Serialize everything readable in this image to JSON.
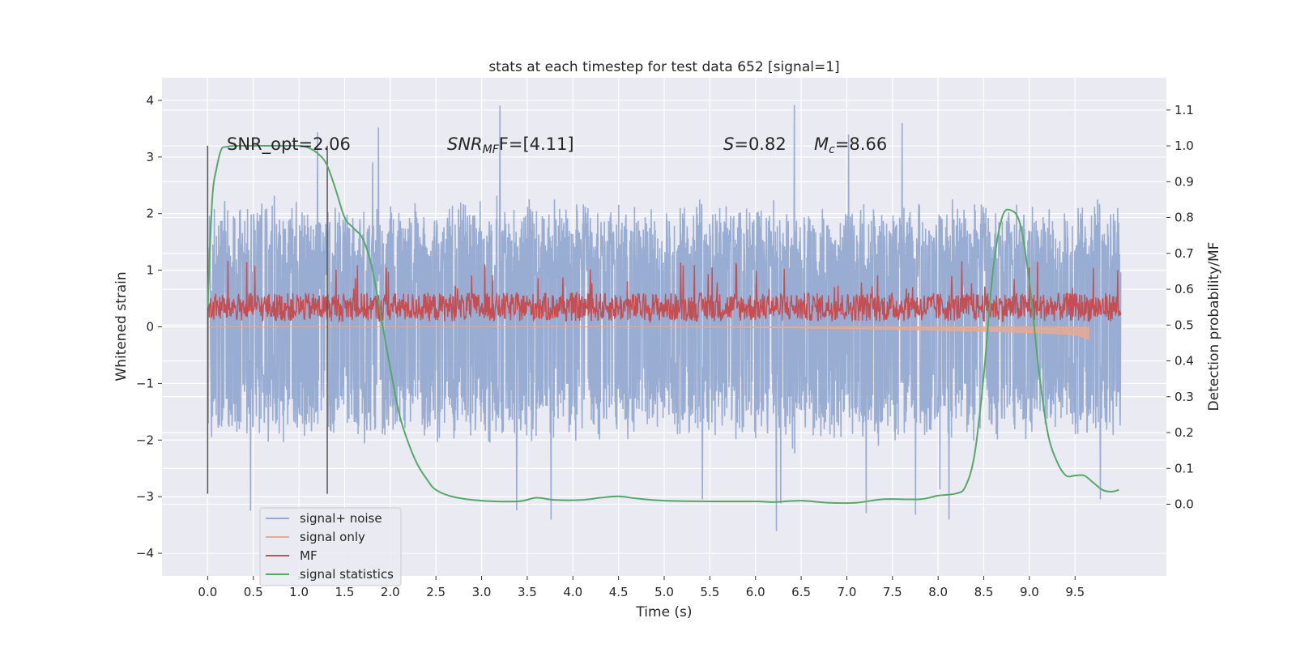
{
  "chart_data": {
    "type": "line",
    "title": "stats at each timestep for test data 652 [signal=1]",
    "xlabel": "Time (s)",
    "ylabel_left": "Whitened strain",
    "ylabel_right": "Detection probability/MF",
    "xlim": [
      -0.5,
      10.5
    ],
    "ylim_left": [
      -4.4,
      4.4
    ],
    "ylim_right": [
      -0.2,
      1.19
    ],
    "x_ticks": [
      "0.0",
      "0.5",
      "1.0",
      "1.5",
      "2.0",
      "2.5",
      "3.0",
      "3.5",
      "4.0",
      "4.5",
      "5.0",
      "5.5",
      "6.0",
      "6.5",
      "7.0",
      "7.5",
      "8.0",
      "8.5",
      "9.0",
      "9.5"
    ],
    "y_left_ticks": [
      "4",
      "3",
      "2",
      "1",
      "0",
      "−1",
      "−2",
      "−3",
      "−4"
    ],
    "y_right_ticks": [
      "1.1",
      "1.0",
      "0.9",
      "0.8",
      "0.7",
      "0.6",
      "0.5",
      "0.4",
      "0.3",
      "0.2",
      "0.1",
      "0.0"
    ],
    "grid": true,
    "legend_position": "bottom-left",
    "colors": {
      "background": "#eaeaf2",
      "grid": "#ffffff",
      "signal_noise": "#95a9d0",
      "signal_only": "#e9a98f",
      "mf": "#c44e52",
      "stat": "#55a868",
      "vline": "#555555"
    },
    "annotations": {
      "snr_opt": "SNR_opt=2.06",
      "snr_mf_name": "SNR",
      "snr_mf_sub": "MF",
      "snr_mf_value": "F=[4.11]",
      "s_name": "S",
      "s_value": "=0.82",
      "mc_name": "M",
      "mc_sub": "c",
      "mc_value": "=8.66"
    },
    "vertical_lines_x": [
      0.0,
      1.31
    ],
    "series": [
      {
        "name": "signal+ noise",
        "axis": "left",
        "x_range": [
          0.0,
          10.0
        ],
        "points": 3000,
        "typical_envelope": [
          -1.8,
          2.0
        ],
        "extremes": [
          -3.7,
          4.05
        ]
      },
      {
        "name": "signal only",
        "axis": "left",
        "x": [
          0.0,
          1.0,
          2.0,
          3.0,
          4.0,
          5.0,
          6.0,
          7.0,
          8.0,
          8.5,
          9.0,
          9.5,
          9.65
        ],
        "y_min": [
          0.0,
          0.0,
          0.0,
          0.0,
          0.0,
          0.0,
          -0.01,
          -0.03,
          -0.06,
          -0.08,
          -0.1,
          -0.14,
          -0.22
        ],
        "y_max": [
          0.0,
          0.0,
          0.0,
          0.0,
          0.0,
          0.0,
          0.0,
          0.0,
          0.0,
          0.0,
          0.0,
          0.0,
          0.0
        ]
      },
      {
        "name": "MF",
        "axis": "right",
        "x_range": [
          0.0,
          10.0
        ],
        "typical_envelope": [
          0.5,
          0.6
        ],
        "extremes": [
          0.49,
          0.68
        ]
      },
      {
        "name": "signal statistics",
        "axis": "right",
        "x": [
          0.0,
          0.05,
          0.1,
          0.15,
          0.2,
          0.3,
          0.5,
          0.8,
          1.0,
          1.1,
          1.2,
          1.3,
          1.4,
          1.5,
          1.6,
          1.7,
          1.8,
          1.9,
          2.0,
          2.1,
          2.2,
          2.3,
          2.4,
          2.5,
          2.7,
          3.0,
          3.4,
          3.6,
          3.8,
          4.1,
          4.3,
          4.5,
          4.7,
          5.0,
          5.5,
          6.0,
          6.2,
          6.5,
          6.8,
          7.1,
          7.4,
          7.8,
          8.0,
          8.2,
          8.3,
          8.4,
          8.5,
          8.6,
          8.7,
          8.8,
          8.9,
          9.0,
          9.1,
          9.2,
          9.3,
          9.4,
          9.5,
          9.6,
          9.7,
          9.8,
          9.9,
          9.98
        ],
        "y": [
          0.55,
          0.85,
          0.94,
          0.99,
          0.997,
          1.0,
          1.0,
          1.0,
          1.0,
          0.995,
          0.98,
          0.95,
          0.88,
          0.8,
          0.77,
          0.74,
          0.66,
          0.52,
          0.38,
          0.25,
          0.17,
          0.11,
          0.07,
          0.04,
          0.02,
          0.01,
          0.008,
          0.018,
          0.012,
          0.012,
          0.018,
          0.022,
          0.016,
          0.01,
          0.008,
          0.008,
          0.006,
          0.01,
          0.004,
          0.004,
          0.014,
          0.014,
          0.024,
          0.03,
          0.05,
          0.14,
          0.36,
          0.65,
          0.8,
          0.82,
          0.78,
          0.62,
          0.38,
          0.2,
          0.12,
          0.08,
          0.08,
          0.08,
          0.06,
          0.04,
          0.035,
          0.04
        ]
      }
    ]
  }
}
